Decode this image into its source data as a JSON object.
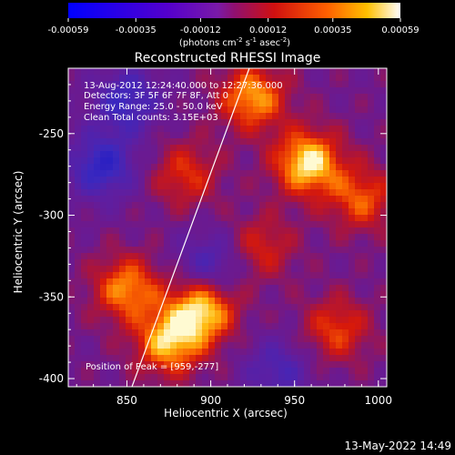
{
  "chart_data": {
    "type": "heatmap",
    "title": "Reconstructed RHESSI Image",
    "xlabel": "Heliocentric X (arcsec)",
    "ylabel": "Heliocentric Y (arcsec)",
    "xlim": [
      815,
      1005
    ],
    "ylim": [
      -405,
      -210
    ],
    "x_ticks": [
      850,
      900,
      950,
      1000
    ],
    "y_ticks": [
      -400,
      -350,
      -300,
      -250
    ],
    "colorbar": {
      "min": -0.00059,
      "max": 0.00059,
      "ticks": [
        "-0.00059",
        "-0.00035",
        "-0.00012",
        "0.00012",
        "0.00035",
        "0.00059"
      ],
      "tick_values": [
        -0.00059,
        -0.00035,
        -0.00012,
        0.00012,
        0.00035,
        0.00059
      ],
      "unit_prefix": "(photons cm",
      "unit_exp1": "-2",
      "unit_mid1": " s",
      "unit_exp2": "-1",
      "unit_mid2": " asec",
      "unit_exp3": "-2",
      "unit_suffix": ")"
    },
    "annotations": [
      "13-Aug-2012 12:24:40.000 to 12:27:36.000",
      "Detectors: 3F 5F 6F 7F 8F, Att 0",
      "Energy Range: 25.0 - 50.0 keV",
      "Clean     Total counts: 3.15E+03"
    ],
    "peak_label": "Position of Peak = [959,-277]",
    "peak": [
      959,
      -277
    ],
    "limb_line": [
      [
        853,
        -405
      ],
      [
        923,
        -210
      ]
    ],
    "sources": [
      {
        "x": 958,
        "y": -268,
        "intensity": 1.0
      },
      {
        "x": 895,
        "y": -358,
        "intensity": 0.95
      },
      {
        "x": 875,
        "y": -378,
        "intensity": 0.85
      },
      {
        "x": 850,
        "y": -345,
        "intensity": 0.75
      },
      {
        "x": 925,
        "y": -228,
        "intensity": 0.8
      },
      {
        "x": 990,
        "y": -290,
        "intensity": 0.6
      },
      {
        "x": 975,
        "y": -370,
        "intensity": 0.55
      },
      {
        "x": 885,
        "y": -275,
        "intensity": 0.5
      },
      {
        "x": 930,
        "y": -320,
        "intensity": 0.45
      },
      {
        "x": 835,
        "y": -270,
        "intensity": -0.7
      },
      {
        "x": 850,
        "y": -230,
        "intensity": -0.6
      },
      {
        "x": 900,
        "y": -330,
        "intensity": -0.5
      },
      {
        "x": 940,
        "y": -395,
        "intensity": -0.45
      }
    ],
    "grid": false
  },
  "footer_timestamp": "13-May-2022 14:49"
}
